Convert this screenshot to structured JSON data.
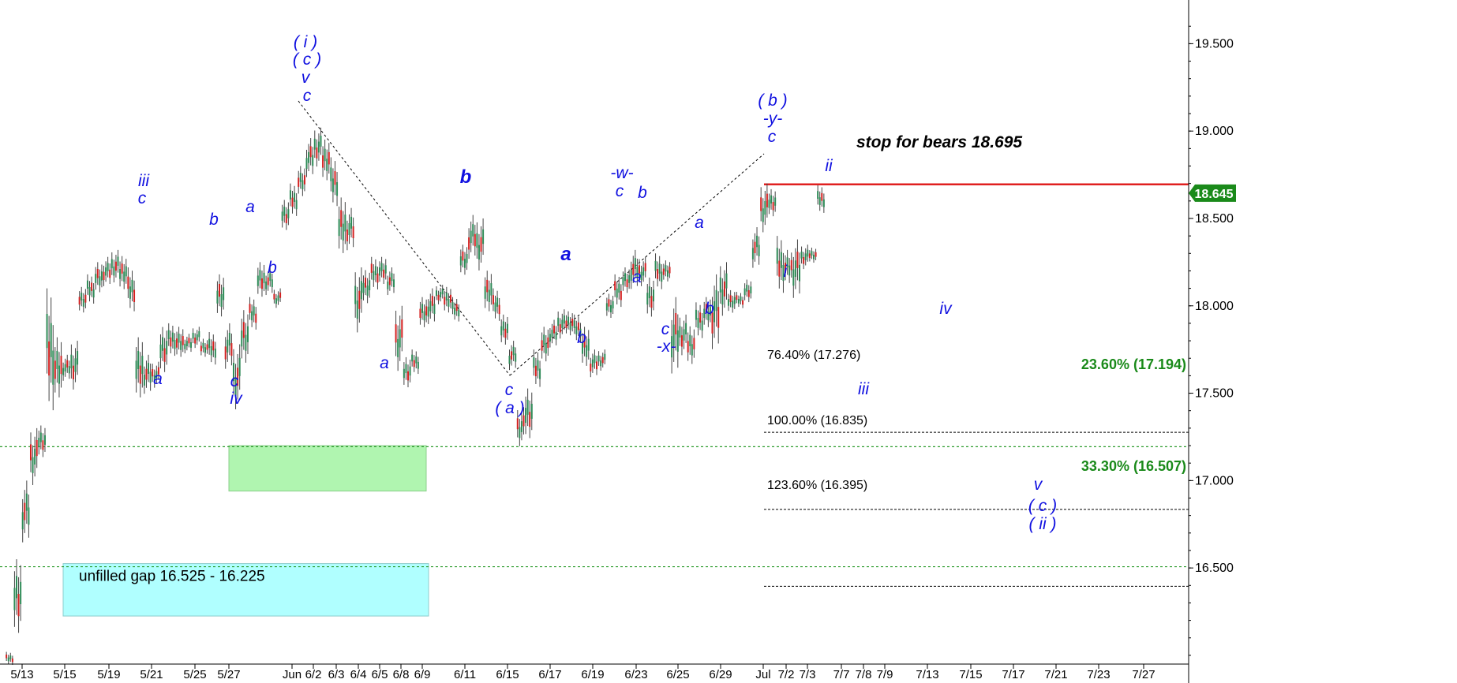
{
  "chart_data": {
    "type": "candlestick",
    "y_axis": {
      "range": [
        15.95,
        19.75
      ],
      "ticks": [
        "16.500",
        "17.000",
        "17.500",
        "18.000",
        "18.500",
        "19.000",
        "19.500"
      ],
      "tick_values": [
        16.5,
        17.0,
        17.5,
        18.0,
        18.5,
        19.0,
        19.5
      ],
      "side": "right"
    },
    "x_axis": {
      "labels": [
        "5/13",
        "5/15",
        "5/19",
        "5/21",
        "5/25",
        "5/27",
        "Jun",
        "6/2",
        "6/3",
        "6/4",
        "6/5",
        "6/8",
        "6/9",
        "6/11",
        "6/15",
        "6/17",
        "6/19",
        "6/23",
        "6/25",
        "6/29",
        "Jul",
        "7/2",
        "7/3",
        "7/7",
        "7/8",
        "7/9",
        "7/13",
        "7/15",
        "7/17",
        "7/21",
        "7/23",
        "7/27"
      ]
    },
    "last_price": {
      "value": 18.645,
      "label": "18.645",
      "color": "#1a8a1a"
    },
    "candles": [
      [
        15.94,
        16.02
      ],
      [
        16.06,
        16.55
      ],
      [
        16.62,
        17.0
      ],
      [
        16.95,
        17.3
      ],
      [
        17.12,
        17.33
      ],
      [
        17.35,
        18.1
      ],
      [
        17.42,
        17.82
      ],
      [
        17.56,
        17.72
      ],
      [
        17.5,
        17.8
      ],
      [
        17.95,
        18.12
      ],
      [
        18.0,
        18.18
      ],
      [
        18.05,
        18.25
      ],
      [
        18.1,
        18.28
      ],
      [
        18.12,
        18.32
      ],
      [
        18.08,
        18.3
      ],
      [
        17.95,
        18.22
      ],
      [
        17.42,
        17.82
      ],
      [
        17.48,
        17.72
      ],
      [
        17.52,
        17.68
      ],
      [
        17.6,
        17.9
      ],
      [
        17.7,
        17.9
      ],
      [
        17.68,
        17.88
      ],
      [
        17.72,
        17.84
      ],
      [
        17.75,
        17.88
      ],
      [
        17.7,
        17.82
      ],
      [
        17.65,
        17.85
      ],
      [
        17.9,
        18.18
      ],
      [
        17.62,
        17.9
      ],
      [
        17.38,
        17.78
      ],
      [
        17.65,
        18.0
      ],
      [
        17.85,
        18.05
      ],
      [
        18.02,
        18.25
      ],
      [
        18.05,
        18.22
      ],
      [
        17.98,
        18.1
      ],
      [
        18.42,
        18.62
      ],
      [
        18.5,
        18.7
      ],
      [
        18.6,
        18.8
      ],
      [
        18.72,
        18.96
      ],
      [
        18.78,
        19.02
      ],
      [
        18.7,
        18.97
      ],
      [
        18.55,
        18.85
      ],
      [
        18.25,
        18.62
      ],
      [
        18.3,
        18.56
      ],
      [
        17.82,
        18.22
      ],
      [
        18.0,
        18.22
      ],
      [
        18.08,
        18.28
      ],
      [
        18.1,
        18.28
      ],
      [
        18.05,
        18.22
      ],
      [
        17.6,
        18.0
      ],
      [
        17.52,
        17.72
      ],
      [
        17.6,
        17.75
      ],
      [
        17.85,
        18.05
      ],
      [
        17.88,
        18.1
      ],
      [
        18.0,
        18.12
      ],
      [
        17.95,
        18.12
      ],
      [
        17.9,
        18.05
      ],
      [
        18.15,
        18.35
      ],
      [
        18.25,
        18.52
      ],
      [
        18.18,
        18.5
      ],
      [
        17.95,
        18.22
      ],
      [
        17.9,
        18.1
      ],
      [
        17.75,
        17.95
      ],
      [
        17.62,
        17.8
      ],
      [
        17.18,
        17.42
      ],
      [
        17.22,
        17.55
      ],
      [
        17.52,
        17.75
      ],
      [
        17.65,
        17.88
      ],
      [
        17.75,
        17.92
      ],
      [
        17.8,
        17.98
      ],
      [
        17.82,
        17.98
      ],
      [
        17.78,
        17.95
      ],
      [
        17.62,
        17.88
      ],
      [
        17.58,
        17.75
      ],
      [
        17.62,
        17.75
      ],
      [
        17.92,
        18.08
      ],
      [
        17.98,
        18.18
      ],
      [
        18.05,
        18.22
      ],
      [
        18.08,
        18.32
      ],
      [
        18.1,
        18.28
      ],
      [
        17.92,
        18.18
      ],
      [
        18.08,
        18.3
      ],
      [
        18.12,
        18.26
      ],
      [
        17.58,
        18.05
      ],
      [
        17.7,
        17.95
      ],
      [
        17.65,
        17.9
      ],
      [
        17.8,
        18.02
      ],
      [
        17.85,
        18.05
      ],
      [
        17.72,
        18.18
      ],
      [
        17.92,
        18.25
      ],
      [
        17.95,
        18.1
      ],
      [
        17.98,
        18.08
      ],
      [
        18.0,
        18.15
      ],
      [
        18.2,
        18.45
      ],
      [
        18.4,
        18.7
      ],
      [
        18.5,
        18.68
      ],
      [
        18.05,
        18.4
      ],
      [
        18.1,
        18.32
      ],
      [
        18.02,
        18.38
      ],
      [
        18.2,
        18.35
      ],
      [
        18.24,
        18.34
      ],
      [
        18.52,
        18.69
      ]
    ],
    "wave_labels": [
      {
        "text": "iii"
      },
      {
        "text": "c"
      },
      {
        "text": "a"
      },
      {
        "text": "b"
      },
      {
        "text": "c"
      },
      {
        "text": "iv"
      },
      {
        "text": "a"
      },
      {
        "text": "b"
      },
      {
        "text": "( i )"
      },
      {
        "text": "( c )"
      },
      {
        "text": "v"
      },
      {
        "text": "c"
      },
      {
        "text": "a"
      },
      {
        "text": "b"
      },
      {
        "text": "c"
      },
      {
        "text": "( a )"
      },
      {
        "text": "a"
      },
      {
        "text": "b"
      },
      {
        "text": "-w-"
      },
      {
        "text": "c"
      },
      {
        "text": "b"
      },
      {
        "text": "a"
      },
      {
        "text": "c"
      },
      {
        "text": "-x-"
      },
      {
        "text": "a"
      },
      {
        "text": "b"
      },
      {
        "text": "( b )"
      },
      {
        "text": "-y-"
      },
      {
        "text": "c"
      },
      {
        "text": "i"
      },
      {
        "text": "ii"
      },
      {
        "text": "iv"
      },
      {
        "text": "iii"
      },
      {
        "text": "v"
      },
      {
        "text": "( c )"
      },
      {
        "text": "( ii )"
      }
    ],
    "fib_levels": [
      {
        "label": "76.40% (17.276)",
        "value": 17.276
      },
      {
        "label": "100.00% (16.835)",
        "value": 16.835
      },
      {
        "label": "123.60% (16.395)",
        "value": 16.395
      }
    ],
    "green_levels": [
      {
        "label": "23.60% (17.194)",
        "value": 17.194
      },
      {
        "label": "33.30% (16.507)",
        "value": 16.507
      }
    ],
    "stop_line": {
      "label": "stop for bears 18.695",
      "value": 18.695
    },
    "zones": [
      {
        "name": "green-zone",
        "low": 16.94,
        "high": 17.2,
        "color": "#b0f5b0"
      },
      {
        "name": "gap-zone",
        "low": 16.225,
        "high": 16.525,
        "color": "#b0ffff",
        "label": "unfilled gap 16.525 - 16.225"
      }
    ]
  }
}
